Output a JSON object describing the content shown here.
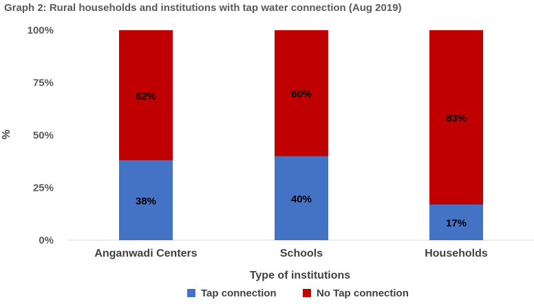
{
  "chart_data": {
    "type": "bar",
    "stacked": true,
    "percent": true,
    "title": "Graph 2: Rural households and institutions with tap water connection (Aug 2019)",
    "xlabel": "Type of institutions",
    "ylabel": "%",
    "ylim": [
      0,
      100
    ],
    "yticks": [
      "0%",
      "25%",
      "50%",
      "75%",
      "100%"
    ],
    "categories": [
      "Anganwadi Centers",
      "Schools",
      "Households"
    ],
    "series": [
      {
        "name": "Tap connection",
        "color": "#4472c4",
        "values": [
          38,
          40,
          17
        ],
        "labels": [
          "38%",
          "40%",
          "17%"
        ]
      },
      {
        "name": "No Tap connection",
        "color": "#c00000",
        "values": [
          62,
          60,
          83
        ],
        "labels": [
          "62%",
          "60%",
          "83%"
        ]
      }
    ],
    "legend_position": "bottom",
    "grid": false
  }
}
